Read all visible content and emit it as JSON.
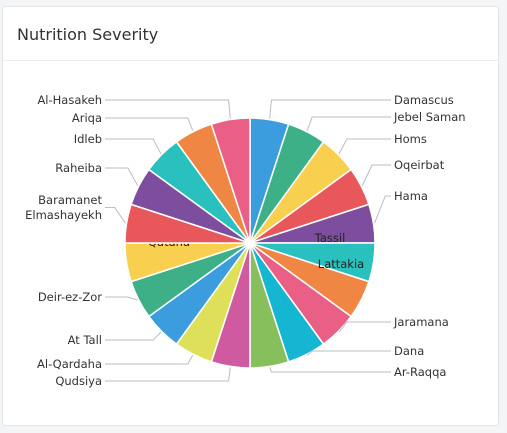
{
  "card": {
    "title": "Nutrition Severity"
  },
  "chart_data": {
    "type": "pie",
    "title": "Nutrition Severity",
    "categories": [
      "Damascus",
      "Jebel Saman",
      "Homs",
      "Oqeirbat",
      "Hama",
      "Tassil",
      "Lattakia",
      "Jaramana",
      "Dana",
      "Ar-Raqqa",
      "Qudsiya",
      "Al-Qardaha",
      "At Tall",
      "Deir-ez-Zor",
      "Qatana",
      "Baramanet Elmashayekh",
      "Raheiba",
      "Idleb",
      "Ariqa",
      "Al-Hasakeh"
    ],
    "values": [
      1,
      1,
      1,
      1,
      1,
      1,
      1,
      1,
      1,
      1,
      1,
      1,
      1,
      1,
      1,
      1,
      1,
      1,
      1,
      1
    ],
    "colors": [
      "#3b9ddd",
      "#3db088",
      "#f8cf4f",
      "#e8575a",
      "#7e4e9e",
      "#29c0bd",
      "#f08644",
      "#e95f86",
      "#14b6d2",
      "#86bf5c",
      "#cf5aa0",
      "#dfe05a",
      "#3b9ddd",
      "#3db088",
      "#f8cf4f",
      "#e8575a",
      "#7e4e9e",
      "#29c0bd",
      "#f08644",
      "#e95f86"
    ],
    "legend": "none"
  }
}
